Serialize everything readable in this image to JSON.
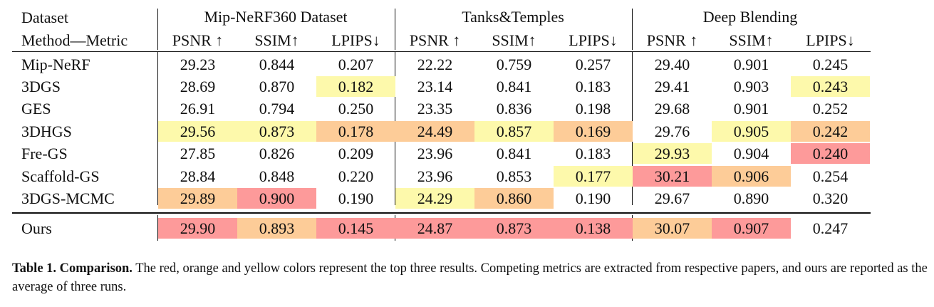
{
  "table": {
    "corner_top": "Dataset",
    "corner_bottom": "Method—Metric",
    "groups": [
      "Mip-NeRF360 Dataset",
      "Tanks&Temples",
      "Deep Blending"
    ],
    "metrics": [
      "PSNR ↑",
      "SSIM↑",
      "LPIPS↓",
      "PSNR ↑",
      "SSIM↑",
      "LPIPS↓",
      "PSNR ↑",
      "SSIM↑",
      "LPIPS↓"
    ],
    "rows": [
      {
        "method": "Mip-NeRF",
        "values": [
          "29.23",
          "0.844",
          "0.207",
          "22.22",
          "0.759",
          "0.257",
          "29.40",
          "0.901",
          "0.245"
        ],
        "ranks": [
          0,
          0,
          0,
          0,
          0,
          0,
          0,
          0,
          0
        ]
      },
      {
        "method": "3DGS",
        "values": [
          "28.69",
          "0.870",
          "0.182",
          "23.14",
          "0.841",
          "0.183",
          "29.41",
          "0.903",
          "0.243"
        ],
        "ranks": [
          0,
          0,
          3,
          0,
          0,
          0,
          0,
          0,
          3
        ]
      },
      {
        "method": "GES",
        "values": [
          "26.91",
          "0.794",
          "0.250",
          "23.35",
          "0.836",
          "0.198",
          "29.68",
          "0.901",
          "0.252"
        ],
        "ranks": [
          0,
          0,
          0,
          0,
          0,
          0,
          0,
          0,
          0
        ]
      },
      {
        "method": "3DHGS",
        "values": [
          "29.56",
          "0.873",
          "0.178",
          "24.49",
          "0.857",
          "0.169",
          "29.76",
          "0.905",
          "0.242"
        ],
        "ranks": [
          3,
          3,
          2,
          2,
          3,
          2,
          0,
          3,
          2
        ]
      },
      {
        "method": "Fre-GS",
        "values": [
          "27.85",
          "0.826",
          "0.209",
          "23.96",
          "0.841",
          "0.183",
          "29.93",
          "0.904",
          "0.240"
        ],
        "ranks": [
          0,
          0,
          0,
          0,
          0,
          0,
          3,
          0,
          1
        ]
      },
      {
        "method": "Scaffold-GS",
        "values": [
          "28.84",
          "0.848",
          "0.220",
          "23.96",
          "0.853",
          "0.177",
          "30.21",
          "0.906",
          "0.254"
        ],
        "ranks": [
          0,
          0,
          0,
          0,
          0,
          3,
          1,
          2,
          0
        ]
      },
      {
        "method": "3DGS-MCMC",
        "values": [
          "29.89",
          "0.900",
          "0.190",
          "24.29",
          "0.860",
          "0.190",
          "29.67",
          "0.890",
          "0.320"
        ],
        "ranks": [
          2,
          1,
          0,
          3,
          2,
          0,
          0,
          0,
          0
        ]
      }
    ],
    "ours": {
      "method": "Ours",
      "values": [
        "29.90",
        "0.893",
        "0.145",
        "24.87",
        "0.873",
        "0.138",
        "30.07",
        "0.907",
        "0.247"
      ],
      "ranks": [
        1,
        2,
        1,
        1,
        1,
        1,
        2,
        1,
        0
      ]
    }
  },
  "rank_colors": {
    "1": "#fd9a9a",
    "2": "#fdcc98",
    "3": "#fdf9ab"
  },
  "caption": {
    "label": "Table 1.",
    "title": "Comparison.",
    "text": "The red, orange and yellow colors represent the top three results. Competing metrics are extracted from respective papers, and ours are reported as the average of three runs."
  }
}
